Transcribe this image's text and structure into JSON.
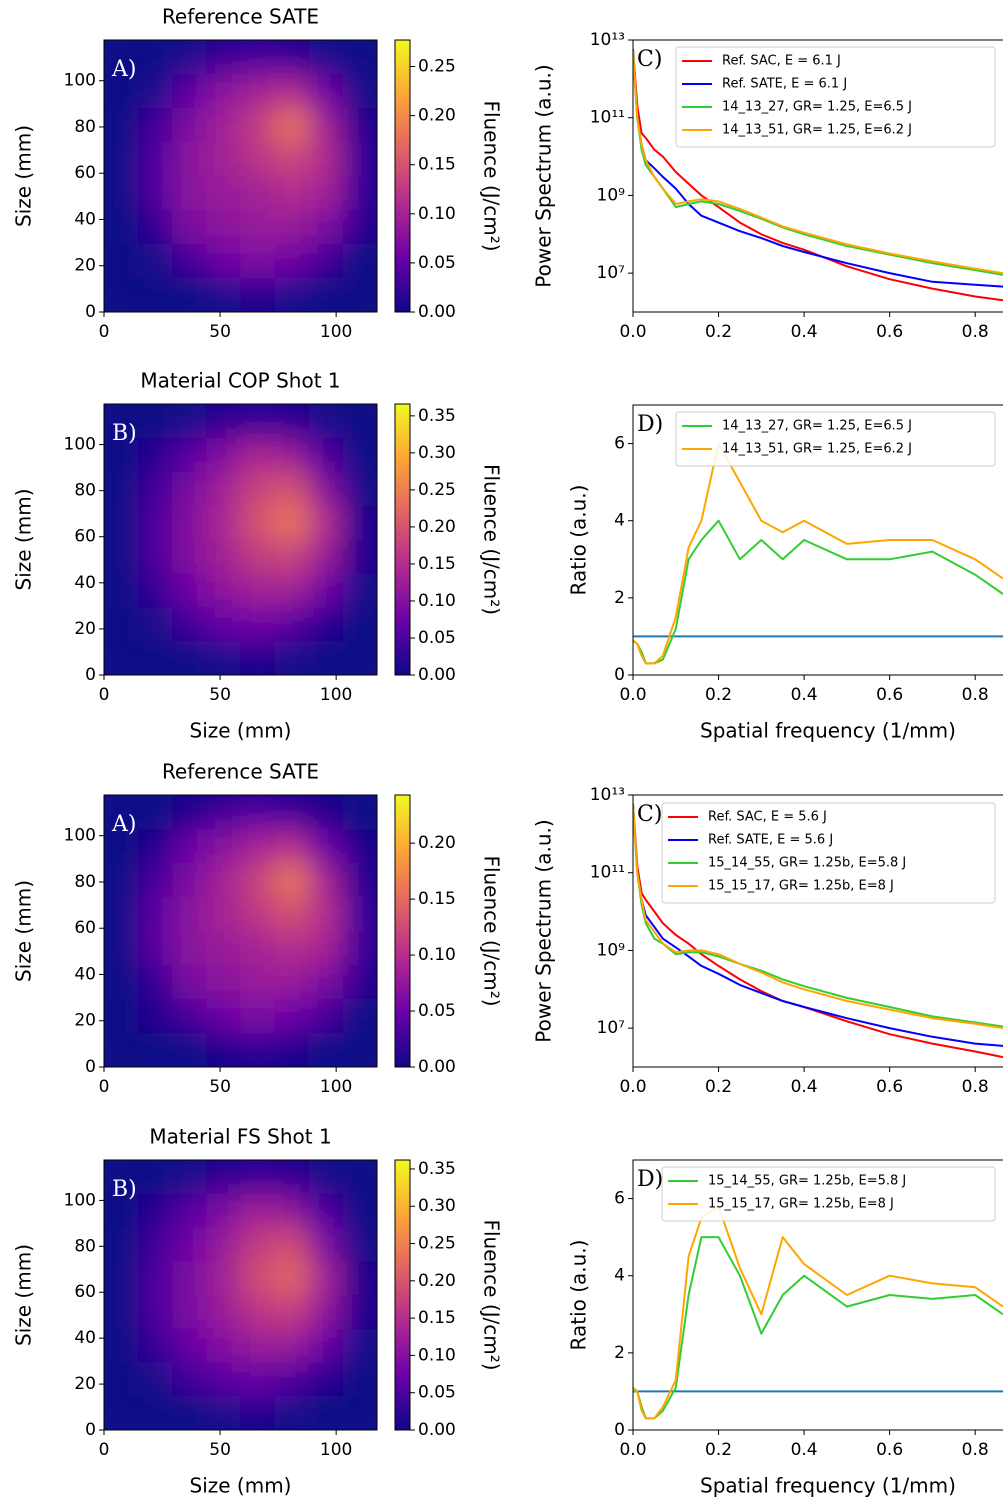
{
  "chart_data": [
    {
      "type": "heatmap",
      "title": "Reference SATE",
      "ylabel": "Size (mm)",
      "annotation": "A)",
      "xlim": [
        0,
        117.6
      ],
      "ylim": [
        0,
        117.6
      ],
      "xticks": [
        0,
        50,
        100
      ],
      "yticks": [
        0,
        20,
        40,
        60,
        80,
        100
      ],
      "z": [
        [
          0,
          0,
          0.01,
          0.03,
          0.04,
          0.03,
          0.01,
          0
        ],
        [
          0,
          0.01,
          0.05,
          0.08,
          0.1,
          0.11,
          0.06,
          0.01
        ],
        [
          0,
          0.03,
          0.07,
          0.1,
          0.13,
          0.18,
          0.1,
          0.02
        ],
        [
          0,
          0.04,
          0.08,
          0.1,
          0.12,
          0.14,
          0.11,
          0.03
        ],
        [
          0,
          0.04,
          0.08,
          0.09,
          0.1,
          0.11,
          0.1,
          0.03
        ],
        [
          0,
          0.02,
          0.07,
          0.08,
          0.09,
          0.09,
          0.07,
          0.02
        ],
        [
          0,
          0.01,
          0.03,
          0.06,
          0.07,
          0.06,
          0.03,
          0
        ],
        [
          0,
          0,
          0,
          0.01,
          0.02,
          0.01,
          0,
          0
        ]
      ],
      "colorbar": {
        "label": "Fluence (J/cm²)",
        "lim": [
          0,
          0.277
        ],
        "ticks": [
          {
            "value": 0,
            "label": "0.00"
          },
          0.05,
          {
            "value": 0.1,
            "label": "0.10"
          },
          0.15,
          {
            "value": 0.2,
            "label": "0.20"
          },
          0.25
        ]
      }
    },
    {
      "type": "line",
      "ylabel": "Power Spectrum (a.u.)",
      "annotation": "C)",
      "yscale": "log",
      "xlim": [
        0,
        0.865
      ],
      "ylim": [
        1000000.0,
        10000000000000.0
      ],
      "xticks": [
        {
          "value": 0,
          "label": "0.0"
        },
        0.2,
        0.4,
        0.6,
        0.8
      ],
      "yticks": [
        {
          "value": 10000000.0,
          "label": "10⁷"
        },
        {
          "value": 1000000000.0,
          "label": "10⁹"
        },
        {
          "value": 100000000000.0,
          "label": "10¹¹"
        },
        {
          "value": 10000000000000.0,
          "label": "10¹³"
        }
      ],
      "x": [
        0,
        0.01,
        0.02,
        0.03,
        0.05,
        0.07,
        0.1,
        0.13,
        0.16,
        0.2,
        0.25,
        0.3,
        0.35,
        0.4,
        0.5,
        0.6,
        0.7,
        0.8,
        0.865
      ],
      "series": [
        {
          "name": "Ref. SAC, E = 6.1 J",
          "color": "#ff0000",
          "values": [
            6000000000000.0,
            200000000000.0,
            40000000000.0,
            30000000000.0,
            15000000000.0,
            10000000000.0,
            4000000000.0,
            2000000000.0,
            1000000000.0,
            500000000.0,
            200000000.0,
            100000000.0,
            60000000.0,
            40000000.0,
            15000000.0,
            7000000.0,
            4000000.0,
            2500000.0,
            2000000.0
          ]
        },
        {
          "name": "Ref. SATE, E = 6.1 J",
          "color": "#0000ff",
          "values": [
            5000000000000.0,
            100000000000.0,
            20000000000.0,
            8000000000.0,
            5000000000.0,
            3000000000.0,
            1500000000.0,
            600000000.0,
            300000000.0,
            200000000.0,
            120000000.0,
            80000000.0,
            50000000.0,
            35000000.0,
            18000000.0,
            10000000.0,
            6000000.0,
            5000000.0,
            4500000.0
          ]
        },
        {
          "name": "14_13_27, GR= 1.25, E=6.5 J",
          "color": "#33cc33",
          "values": [
            6000000000000.0,
            100000000000.0,
            15000000000.0,
            6000000000.0,
            3000000000.0,
            1500000000.0,
            500000000.0,
            600000000.0,
            700000000.0,
            600000000.0,
            400000000.0,
            250000000.0,
            150000000.0,
            100000000.0,
            50000000.0,
            30000000.0,
            18000000.0,
            12000000.0,
            9000000.0
          ]
        },
        {
          "name": "14_13_51, GR= 1.25, E=6.2 J",
          "color": "#ffa500",
          "values": [
            5000000000000.0,
            100000000000.0,
            20000000000.0,
            8000000000.0,
            3000000000.0,
            1500000000.0,
            600000000.0,
            700000000.0,
            800000000.0,
            700000000.0,
            450000000.0,
            270000000.0,
            160000000.0,
            110000000.0,
            55000000.0,
            32000000.0,
            20000000.0,
            13000000.0,
            10000000.0
          ]
        }
      ]
    },
    {
      "type": "heatmap",
      "title": "Material COP  Shot 1",
      "xlabel": "Size (mm)",
      "ylabel": "Size (mm)",
      "annotation": "B)",
      "xlim": [
        0,
        117.6
      ],
      "ylim": [
        0,
        117.6
      ],
      "xticks": [
        0,
        50,
        100
      ],
      "yticks": [
        0,
        20,
        40,
        60,
        80,
        100
      ],
      "z": [
        [
          0,
          0,
          0.01,
          0.03,
          0.04,
          0.03,
          0.01,
          0
        ],
        [
          0,
          0.02,
          0.06,
          0.1,
          0.14,
          0.12,
          0.05,
          0
        ],
        [
          0,
          0.04,
          0.09,
          0.13,
          0.18,
          0.2,
          0.1,
          0.01
        ],
        [
          0,
          0.05,
          0.1,
          0.14,
          0.2,
          0.24,
          0.15,
          0.02
        ],
        [
          0,
          0.05,
          0.1,
          0.13,
          0.17,
          0.18,
          0.12,
          0.02
        ],
        [
          0,
          0.03,
          0.08,
          0.11,
          0.13,
          0.13,
          0.08,
          0.01
        ],
        [
          0,
          0.01,
          0.04,
          0.07,
          0.08,
          0.06,
          0.02,
          0
        ],
        [
          0,
          0,
          0,
          0.01,
          0.02,
          0.01,
          0,
          0
        ]
      ],
      "colorbar": {
        "label": "Fluence (J/cm²)",
        "lim": [
          0,
          0.366
        ],
        "ticks": [
          {
            "value": 0,
            "label": "0.00"
          },
          0.05,
          {
            "value": 0.1,
            "label": "0.10"
          },
          0.15,
          {
            "value": 0.2,
            "label": "0.20"
          },
          0.25,
          {
            "value": 0.3,
            "label": "0.30"
          },
          0.35
        ]
      }
    },
    {
      "type": "line",
      "xlabel": "Spatial frequency (1/mm)",
      "ylabel": "Ratio (a.u.)",
      "annotation": "D)",
      "xlim": [
        0,
        0.865
      ],
      "ylim": [
        0,
        7
      ],
      "xticks": [
        {
          "value": 0,
          "label": "0.0"
        },
        0.2,
        0.4,
        0.6,
        0.8
      ],
      "yticks": [
        0,
        2,
        4,
        6
      ],
      "reference_line": {
        "value": 1,
        "color": "#1f77b4"
      },
      "x": [
        0,
        0.01,
        0.02,
        0.03,
        0.05,
        0.07,
        0.1,
        0.13,
        0.16,
        0.2,
        0.25,
        0.3,
        0.35,
        0.4,
        0.5,
        0.6,
        0.7,
        0.8,
        0.865
      ],
      "series": [
        {
          "name": "14_13_27, GR= 1.25, E=6.5 J",
          "color": "#33cc33",
          "values": [
            0.9,
            0.8,
            0.6,
            0.3,
            0.3,
            0.4,
            1.2,
            3,
            3.5,
            4,
            3,
            3.5,
            3,
            3.5,
            3,
            3,
            3.2,
            2.6,
            2.1
          ]
        },
        {
          "name": "14_13_51, GR= 1.25, E=6.2 J",
          "color": "#ffa500",
          "values": [
            0.9,
            0.8,
            0.5,
            0.3,
            0.3,
            0.5,
            1.5,
            3.3,
            4,
            6,
            5,
            4,
            3.7,
            4,
            3.4,
            3.5,
            3.5,
            3,
            2.5
          ]
        }
      ]
    },
    {
      "type": "heatmap",
      "title": "Reference SATE",
      "ylabel": "Size (mm)",
      "annotation": "A)",
      "xlim": [
        0,
        117.6
      ],
      "ylim": [
        0,
        117.6
      ],
      "xticks": [
        0,
        50,
        100
      ],
      "yticks": [
        0,
        20,
        40,
        60,
        80,
        100
      ],
      "z": [
        [
          0,
          0,
          0.01,
          0.03,
          0.04,
          0.03,
          0.01,
          0
        ],
        [
          0,
          0.01,
          0.05,
          0.07,
          0.09,
          0.1,
          0.05,
          0.01
        ],
        [
          0,
          0.03,
          0.06,
          0.09,
          0.12,
          0.16,
          0.09,
          0.02
        ],
        [
          0,
          0.04,
          0.07,
          0.09,
          0.11,
          0.13,
          0.1,
          0.03
        ],
        [
          0,
          0.04,
          0.07,
          0.08,
          0.09,
          0.1,
          0.09,
          0.03
        ],
        [
          0,
          0.02,
          0.06,
          0.07,
          0.08,
          0.08,
          0.06,
          0.02
        ],
        [
          0,
          0.01,
          0.03,
          0.05,
          0.06,
          0.05,
          0.03,
          0
        ],
        [
          0,
          0,
          0,
          0.01,
          0.02,
          0.01,
          0,
          0
        ]
      ],
      "colorbar": {
        "label": "Fluence (J/cm²)",
        "lim": [
          0,
          0.243
        ],
        "ticks": [
          {
            "value": 0,
            "label": "0.00"
          },
          0.05,
          {
            "value": 0.1,
            "label": "0.10"
          },
          0.15,
          {
            "value": 0.2,
            "label": "0.20"
          }
        ]
      }
    },
    {
      "type": "line",
      "ylabel": "Power Spectrum (a.u.)",
      "annotation": "C)",
      "yscale": "log",
      "xlim": [
        0,
        0.865
      ],
      "ylim": [
        1000000.0,
        10000000000000.0
      ],
      "xticks": [
        {
          "value": 0,
          "label": "0.0"
        },
        0.2,
        0.4,
        0.6,
        0.8
      ],
      "yticks": [
        {
          "value": 10000000.0,
          "label": "10⁷"
        },
        {
          "value": 1000000000.0,
          "label": "10⁹"
        },
        {
          "value": 100000000000.0,
          "label": "10¹¹"
        },
        {
          "value": 10000000000000.0,
          "label": "10¹³"
        }
      ],
      "x": [
        0,
        0.01,
        0.02,
        0.03,
        0.05,
        0.07,
        0.1,
        0.13,
        0.16,
        0.2,
        0.25,
        0.3,
        0.35,
        0.4,
        0.5,
        0.6,
        0.7,
        0.8,
        0.865
      ],
      "series": [
        {
          "name": "Ref. SAC, E = 5.6 J",
          "color": "#ff0000",
          "values": [
            6000000000000.0,
            150000000000.0,
            30000000000.0,
            20000000000.0,
            10000000000.0,
            5000000000.0,
            2500000000.0,
            1500000000.0,
            800000000.0,
            400000000.0,
            180000000.0,
            90000000.0,
            50000000.0,
            35000000.0,
            15000000.0,
            7000000.0,
            4000000.0,
            2500000.0,
            1800000.0
          ]
        },
        {
          "name": "Ref. SATE, E = 5.6 J",
          "color": "#0000ff",
          "values": [
            5000000000000.0,
            100000000000.0,
            20000000000.0,
            8000000000.0,
            4000000000.0,
            2000000000.0,
            1200000000.0,
            700000000.0,
            400000000.0,
            250000000.0,
            130000000.0,
            80000000.0,
            50000000.0,
            35000000.0,
            18000000.0,
            10000000.0,
            6000000.0,
            4000000.0,
            3500000.0
          ]
        },
        {
          "name": "15_14_55, GR= 1.25b, E=5.8 J",
          "color": "#33cc33",
          "values": [
            6000000000000.0,
            100000000000.0,
            15000000000.0,
            5000000000.0,
            2000000000.0,
            1500000000.0,
            800000000.0,
            900000000.0,
            900000000.0,
            700000000.0,
            450000000.0,
            300000000.0,
            180000000.0,
            120000000.0,
            60000000.0,
            35000000.0,
            20000000.0,
            14000000.0,
            11000000.0
          ]
        },
        {
          "name": "15_15_17, GR= 1.25b, E=8 J",
          "color": "#ffa500",
          "values": [
            5000000000000.0,
            100000000000.0,
            20000000000.0,
            6000000000.0,
            3000000000.0,
            1500000000.0,
            900000000.0,
            1000000000.0,
            1000000000.0,
            800000000.0,
            450000000.0,
            270000000.0,
            150000000.0,
            100000000.0,
            50000000.0,
            30000000.0,
            18000000.0,
            13000000.0,
            10000000.0
          ]
        }
      ]
    },
    {
      "type": "heatmap",
      "title": "Material FS  Shot 1",
      "xlabel": "Size (mm)",
      "ylabel": "Size (mm)",
      "annotation": "B)",
      "xlim": [
        0,
        117.6
      ],
      "ylim": [
        0,
        117.6
      ],
      "xticks": [
        0,
        50,
        100
      ],
      "yticks": [
        0,
        20,
        40,
        60,
        80,
        100
      ],
      "z": [
        [
          0,
          0,
          0.01,
          0.03,
          0.04,
          0.03,
          0.01,
          0
        ],
        [
          0,
          0.02,
          0.06,
          0.09,
          0.13,
          0.11,
          0.05,
          0
        ],
        [
          0,
          0.04,
          0.08,
          0.12,
          0.17,
          0.19,
          0.09,
          0.01
        ],
        [
          0,
          0.05,
          0.09,
          0.13,
          0.19,
          0.22,
          0.13,
          0.02
        ],
        [
          0,
          0.05,
          0.09,
          0.12,
          0.16,
          0.17,
          0.11,
          0.02
        ],
        [
          0,
          0.03,
          0.07,
          0.1,
          0.12,
          0.12,
          0.07,
          0.01
        ],
        [
          0,
          0.01,
          0.04,
          0.06,
          0.07,
          0.05,
          0.02,
          0
        ],
        [
          0,
          0,
          0,
          0.01,
          0.02,
          0.01,
          0,
          0
        ]
      ],
      "colorbar": {
        "label": "Fluence (J/cm²)",
        "lim": [
          0,
          0.362
        ],
        "ticks": [
          {
            "value": 0,
            "label": "0.00"
          },
          0.05,
          {
            "value": 0.1,
            "label": "0.10"
          },
          0.15,
          {
            "value": 0.2,
            "label": "0.20"
          },
          0.25,
          {
            "value": 0.3,
            "label": "0.30"
          },
          0.35
        ]
      }
    },
    {
      "type": "line",
      "xlabel": "Spatial frequency (1/mm)",
      "ylabel": "Ratio (a.u.)",
      "annotation": "D)",
      "xlim": [
        0,
        0.865
      ],
      "ylim": [
        0,
        7
      ],
      "xticks": [
        {
          "value": 0,
          "label": "0.0"
        },
        0.2,
        0.4,
        0.6,
        0.8
      ],
      "yticks": [
        0,
        2,
        4,
        6
      ],
      "reference_line": {
        "value": 1,
        "color": "#1f77b4"
      },
      "x": [
        0,
        0.01,
        0.02,
        0.03,
        0.05,
        0.07,
        0.1,
        0.13,
        0.16,
        0.2,
        0.25,
        0.3,
        0.35,
        0.4,
        0.5,
        0.6,
        0.7,
        0.8,
        0.865
      ],
      "series": [
        {
          "name": "15_14_55, GR= 1.25b, E=5.8 J",
          "color": "#33cc33",
          "values": [
            1,
            1,
            0.6,
            0.3,
            0.3,
            0.5,
            1.1,
            3.5,
            5,
            5,
            4,
            2.5,
            3.5,
            4,
            3.2,
            3.5,
            3.4,
            3.5,
            3
          ]
        },
        {
          "name": "15_15_17, GR= 1.25b, E=8 J",
          "color": "#ffa500",
          "values": [
            1.1,
            1,
            0.5,
            0.3,
            0.3,
            0.6,
            1.3,
            4.5,
            5.5,
            5.8,
            4.2,
            3,
            5,
            4.3,
            3.5,
            4,
            3.8,
            3.7,
            3.2
          ]
        }
      ]
    }
  ]
}
